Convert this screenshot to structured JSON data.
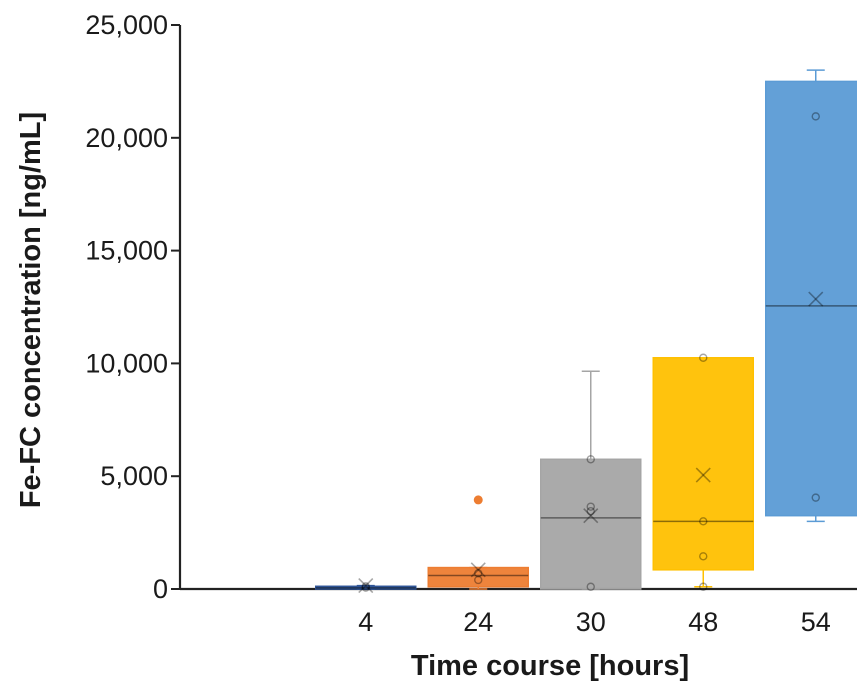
{
  "chart_data": {
    "type": "box",
    "xlabel": "Time course [hours]",
    "ylabel": "Fe-FC concentration [ng/mL]",
    "ylim": [
      0,
      25000
    ],
    "y_ticks": [
      0,
      5000,
      10000,
      15000,
      20000,
      25000
    ],
    "y_tick_labels": [
      "0",
      "5,000",
      "10,000",
      "15,000",
      "20,000",
      "25,000"
    ],
    "categories": [
      "4",
      "24",
      "30",
      "48",
      "54"
    ],
    "series": [
      {
        "category": "4",
        "color": "#2f5597",
        "min": 0,
        "q1": 0,
        "median": 50,
        "q3": 120,
        "max": 150,
        "mean": 150,
        "points": [
          60,
          120
        ],
        "outliers": []
      },
      {
        "category": "24",
        "color": "#ed7d31",
        "min": 0,
        "q1": 100,
        "median": 600,
        "q3": 950,
        "max": 950,
        "mean": 850,
        "points": [
          400,
          700
        ],
        "outliers": [
          3950
        ]
      },
      {
        "category": "30",
        "color": "#a5a5a5",
        "min": 0,
        "q1": 0,
        "median": 3150,
        "q3": 5750,
        "max": 9650,
        "mean": 3250,
        "points": [
          100,
          3450,
          3650,
          5750
        ],
        "outliers": []
      },
      {
        "category": "48",
        "color": "#ffc000",
        "min": 100,
        "q1": 850,
        "median": 3000,
        "q3": 10250,
        "max": 10250,
        "mean": 5050,
        "points": [
          100,
          1450,
          3000,
          10250
        ],
        "outliers": []
      },
      {
        "category": "54",
        "color": "#5b9bd5",
        "min": 3000,
        "q1": 3250,
        "median": 12550,
        "q3": 22500,
        "max": 23000,
        "mean": 12850,
        "points": [
          4050,
          20950
        ],
        "outliers": []
      }
    ]
  }
}
